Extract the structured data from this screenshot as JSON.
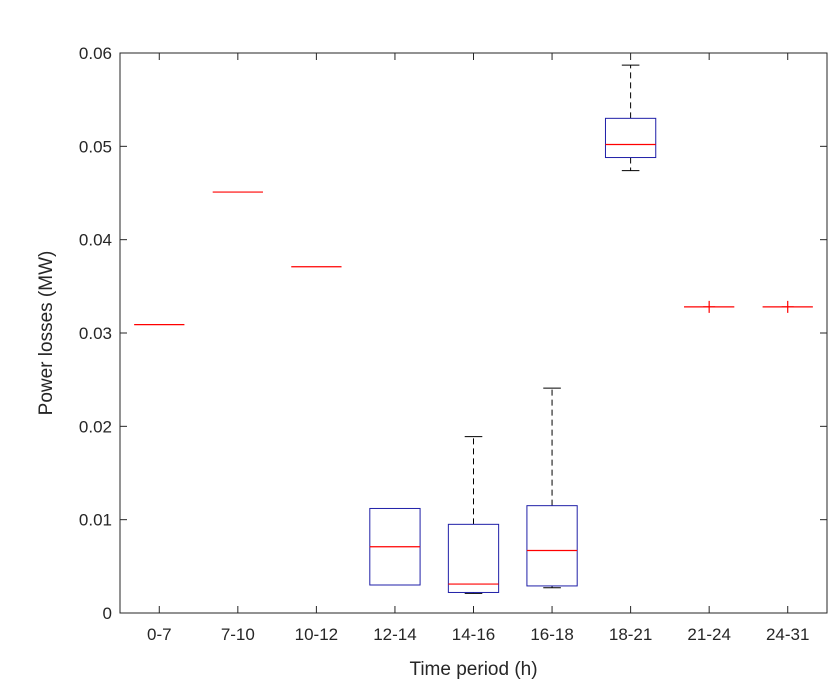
{
  "chart_data": {
    "type": "box",
    "title": "",
    "xlabel": "Time period (h)",
    "ylabel": "Power losses (MW)",
    "ylim": [
      0,
      0.06
    ],
    "yticks": [
      "0",
      "0.01",
      "0.02",
      "0.03",
      "0.04",
      "0.05",
      "0.06"
    ],
    "ytick_values": [
      0,
      0.01,
      0.02,
      0.03,
      0.04,
      0.05,
      0.06
    ],
    "grid": false,
    "categories": [
      "0-7",
      "7-10",
      "10-12",
      "12-14",
      "14-16",
      "16-18",
      "18-21",
      "21-24",
      "24-31"
    ],
    "boxes": [
      {
        "category": "0-7",
        "min": 0.0309,
        "q1": 0.0309,
        "median": 0.0309,
        "q3": 0.0309,
        "max": 0.0309,
        "outliers": []
      },
      {
        "category": "7-10",
        "min": 0.0451,
        "q1": 0.0451,
        "median": 0.0451,
        "q3": 0.0451,
        "max": 0.0451,
        "outliers": []
      },
      {
        "category": "10-12",
        "min": 0.0371,
        "q1": 0.0371,
        "median": 0.0371,
        "q3": 0.0371,
        "max": 0.0371,
        "outliers": []
      },
      {
        "category": "12-14",
        "min": 0.003,
        "q1": 0.003,
        "median": 0.0071,
        "q3": 0.0112,
        "max": 0.0112,
        "outliers": []
      },
      {
        "category": "14-16",
        "min": 0.0021,
        "q1": 0.0022,
        "median": 0.0031,
        "q3": 0.0095,
        "max": 0.0189,
        "outliers": []
      },
      {
        "category": "16-18",
        "min": 0.0027,
        "q1": 0.0029,
        "median": 0.0067,
        "q3": 0.0115,
        "max": 0.0241,
        "outliers": []
      },
      {
        "category": "18-21",
        "min": 0.0474,
        "q1": 0.0488,
        "median": 0.0502,
        "q3": 0.053,
        "max": 0.0587,
        "outliers": []
      },
      {
        "category": "21-24",
        "min": 0.0328,
        "q1": 0.0328,
        "median": 0.0328,
        "q3": 0.0328,
        "max": 0.0328,
        "outliers": [
          0.0328
        ]
      },
      {
        "category": "24-31",
        "min": 0.0328,
        "q1": 0.0328,
        "median": 0.0328,
        "q3": 0.0328,
        "max": 0.0328,
        "outliers": [
          0.0328
        ]
      }
    ],
    "colors": {
      "box": "#1f1fa8",
      "median": "#ff0000",
      "whisker": "#000000",
      "outlier": "#ff0000",
      "axis": "#262626"
    }
  }
}
